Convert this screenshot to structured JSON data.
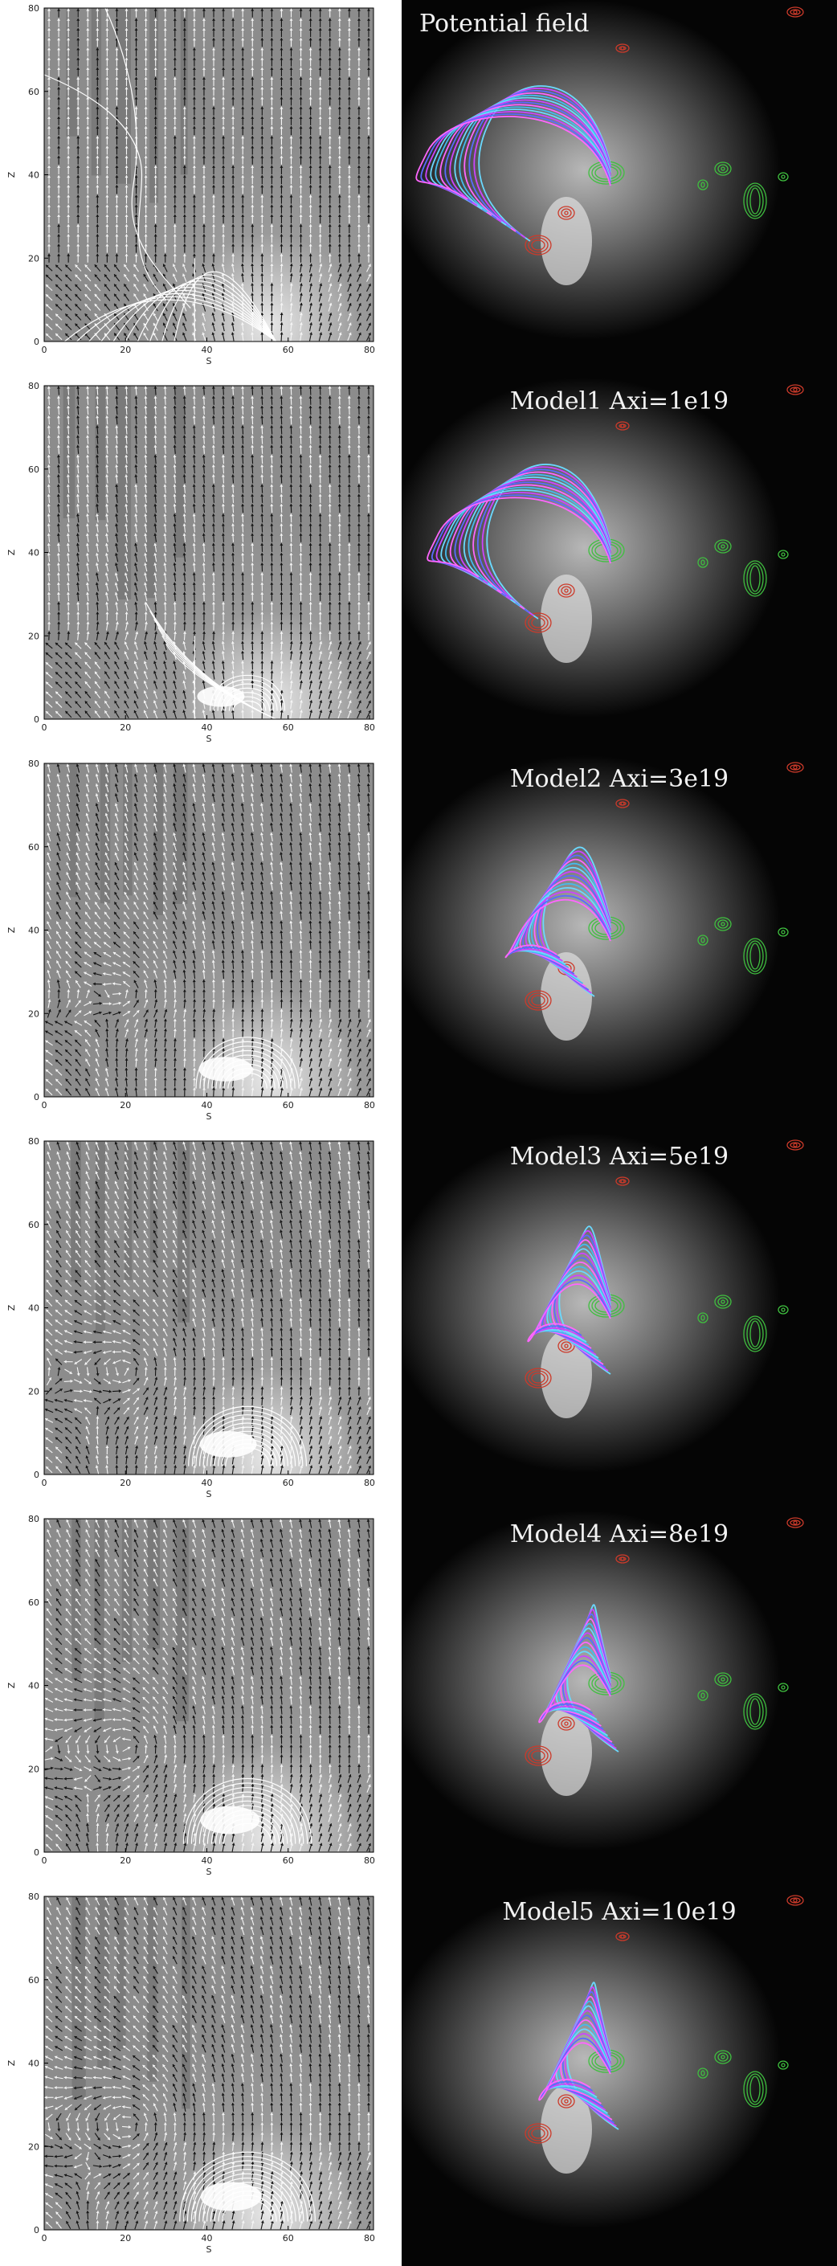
{
  "figure": {
    "rows": [
      {
        "label": "Potential field",
        "label_align": "left",
        "bubble_scale": 0.0,
        "loop_scale": 1.0
      },
      {
        "label": "Model1 Axi=1e19",
        "label_align": "center",
        "bubble_scale": 0.15,
        "loop_scale": 0.95
      },
      {
        "label": "Model2 Axi=3e19",
        "label_align": "center",
        "bubble_scale": 0.55,
        "loop_scale": 0.6
      },
      {
        "label": "Model3 Axi=5e19",
        "label_align": "center",
        "bubble_scale": 0.75,
        "loop_scale": 0.5
      },
      {
        "label": "Model4 Axi=8e19",
        "label_align": "center",
        "bubble_scale": 0.9,
        "loop_scale": 0.45
      },
      {
        "label": "Model5 Axi=10e19",
        "label_align": "center",
        "bubble_scale": 1.0,
        "loop_scale": 0.45
      }
    ],
    "left_plot": {
      "xlabel": "S",
      "ylabel": "Z",
      "x_ticks": [
        "0",
        "20",
        "40",
        "60",
        "80"
      ],
      "y_ticks": [
        "0",
        "20",
        "40",
        "60",
        "80"
      ],
      "xlim": [
        0,
        81
      ],
      "ylim": [
        0,
        80
      ]
    },
    "colors": {
      "background_gray": "#8c8c8c",
      "loop_colors": [
        "#6ad9ff",
        "#cc44ff",
        "#5a6bff",
        "#ff66ff",
        "#44bbee"
      ],
      "contour_positive": "#3fbf3f",
      "contour_negative": "#cc3a2a"
    }
  }
}
